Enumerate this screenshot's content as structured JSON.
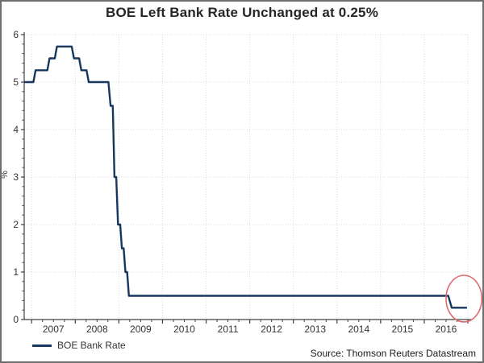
{
  "frame": {
    "border_color": "#6e6e6e",
    "background": "#ffffff"
  },
  "chart_data": {
    "type": "line",
    "title": "BOE Left Bank Rate Unchanged at 0.25%",
    "xlabel": "",
    "ylabel": "%",
    "ylim": [
      0,
      6
    ],
    "y_major_ticks": [
      0,
      1,
      2,
      3,
      4,
      5,
      6
    ],
    "y_minor_step": 0.2,
    "x_range": [
      2006.83,
      2017.0
    ],
    "x_year_gridlines": [
      2007,
      2008,
      2009,
      2010,
      2011,
      2012,
      2013,
      2014,
      2015,
      2016,
      2017
    ],
    "x_tick_labels": [
      "2007",
      "2008",
      "2009",
      "2010",
      "2011",
      "2012",
      "2013",
      "2014",
      "2015",
      "2016"
    ],
    "x_minor_step": 0.25,
    "grid": true,
    "grid_color": "#d9d9d9",
    "axis_color": "#404040",
    "legend_position": "bottom-left",
    "series": [
      {
        "name": "BOE Bank Rate",
        "color": "#17375e",
        "points": [
          [
            2006.83,
            5.0
          ],
          [
            2007.04,
            5.0
          ],
          [
            2007.09,
            5.25
          ],
          [
            2007.36,
            5.25
          ],
          [
            2007.41,
            5.5
          ],
          [
            2007.53,
            5.5
          ],
          [
            2007.58,
            5.75
          ],
          [
            2007.92,
            5.75
          ],
          [
            2007.97,
            5.5
          ],
          [
            2008.09,
            5.5
          ],
          [
            2008.14,
            5.25
          ],
          [
            2008.26,
            5.25
          ],
          [
            2008.31,
            5.0
          ],
          [
            2008.76,
            5.0
          ],
          [
            2008.81,
            4.5
          ],
          [
            2008.86,
            4.5
          ],
          [
            2008.9,
            3.0
          ],
          [
            2008.94,
            3.0
          ],
          [
            2008.98,
            2.0
          ],
          [
            2009.03,
            2.0
          ],
          [
            2009.07,
            1.5
          ],
          [
            2009.11,
            1.5
          ],
          [
            2009.15,
            1.0
          ],
          [
            2009.19,
            1.0
          ],
          [
            2009.23,
            0.5
          ],
          [
            2016.55,
            0.5
          ],
          [
            2016.63,
            0.25
          ],
          [
            2016.98,
            0.25
          ]
        ]
      }
    ],
    "annotation": {
      "name": "highlight-ellipse",
      "shape": "ellipse",
      "color": "#e06a6a",
      "center": [
        2016.91,
        0.44
      ],
      "rx_years": 0.41,
      "ry_units": 0.49
    },
    "legend": {
      "entries": [
        {
          "label": "BOE Bank Rate",
          "color": "#17375e"
        }
      ]
    },
    "source": "Source: Thomson Reuters Datastream"
  }
}
